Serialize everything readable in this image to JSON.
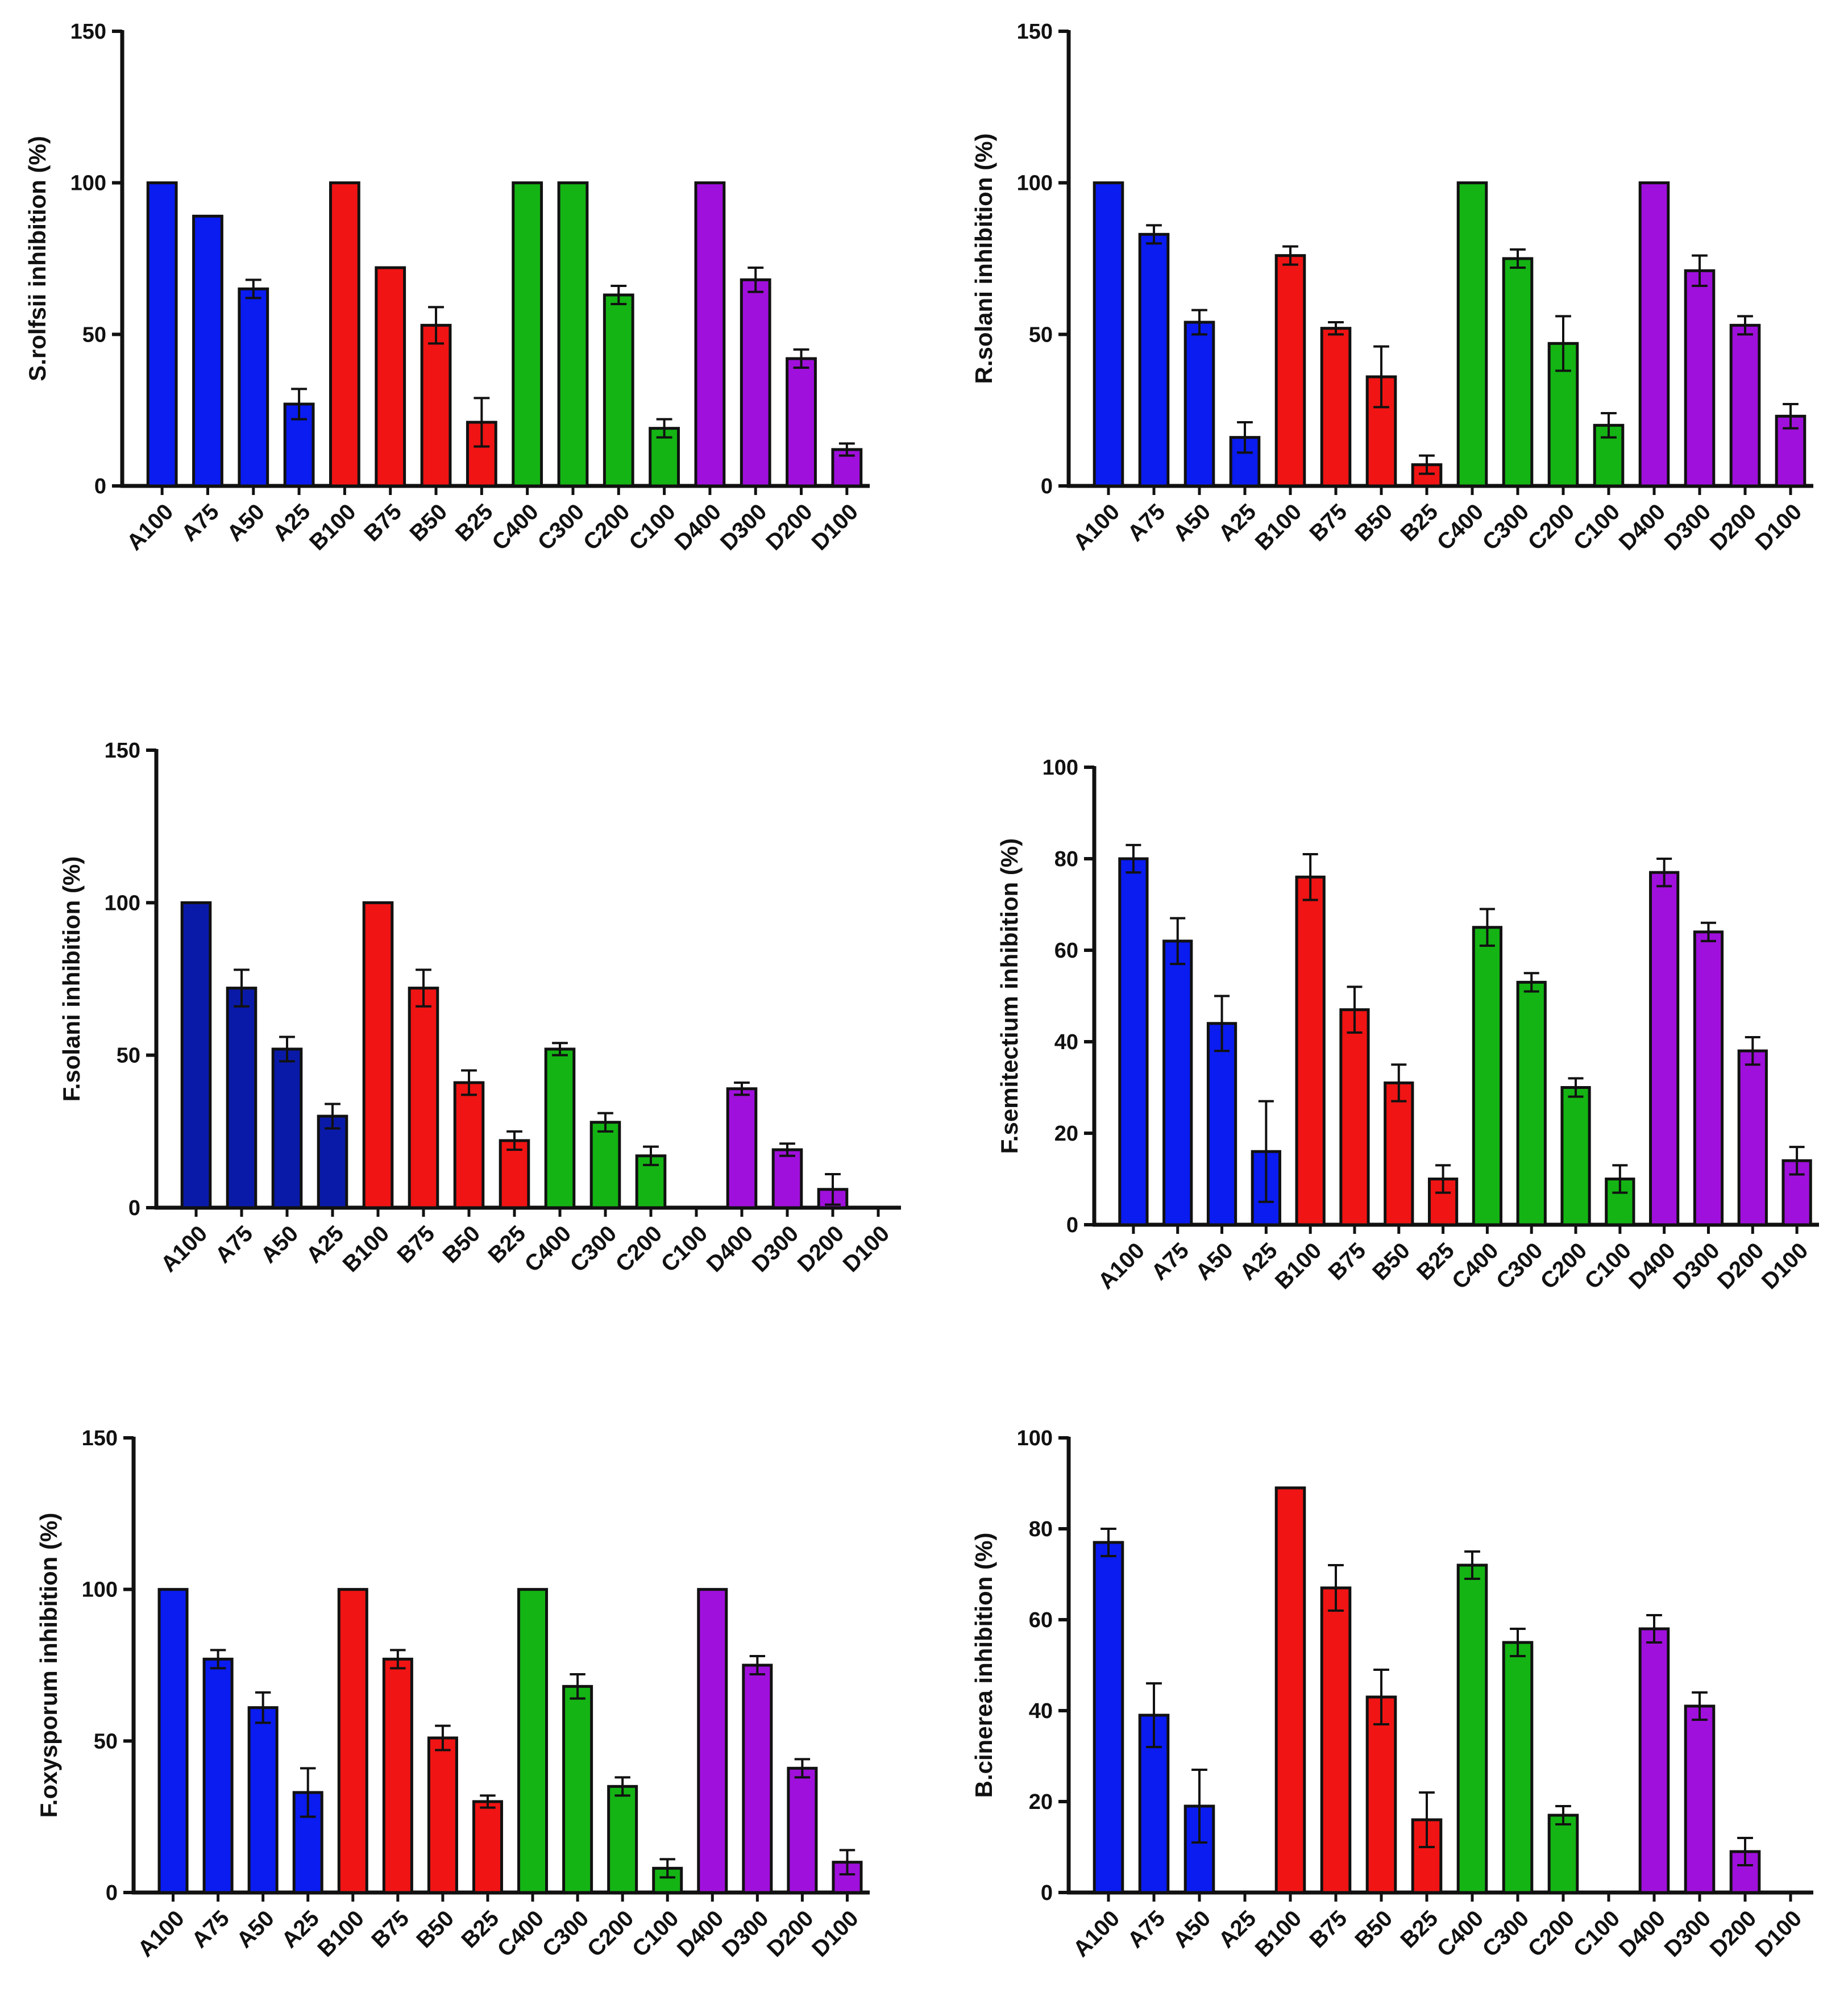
{
  "colors": {
    "A": "#0a1cf0",
    "B": "#f01414",
    "C": "#14b414",
    "D": "#a010dc",
    "A_dark": "#0a1aa8",
    "axis": "#111111"
  },
  "chart_data": [
    {
      "type": "bar",
      "position": "top-left",
      "ylabel": "S.rolfsii inhibition (%)",
      "ylim": [
        0,
        150
      ],
      "yticks": [
        0,
        50,
        100,
        150
      ],
      "grid": false,
      "categories": [
        "A100",
        "A75",
        "A50",
        "A25",
        "B100",
        "B75",
        "B50",
        "B25",
        "C400",
        "C300",
        "C200",
        "C100",
        "D400",
        "D300",
        "D200",
        "D100"
      ],
      "values": [
        100,
        89,
        65,
        27,
        100,
        72,
        53,
        21,
        100,
        100,
        63,
        19,
        100,
        68,
        42,
        12
      ],
      "errors": [
        0,
        0,
        3,
        5,
        0,
        0,
        6,
        8,
        0,
        0,
        3,
        3,
        0,
        4,
        3,
        2
      ],
      "groups": [
        "A",
        "A",
        "A",
        "A",
        "B",
        "B",
        "B",
        "B",
        "C",
        "C",
        "C",
        "C",
        "D",
        "D",
        "D",
        "D"
      ]
    },
    {
      "type": "bar",
      "position": "top-right",
      "ylabel": "R.solani inhibition (%)",
      "ylim": [
        0,
        150
      ],
      "yticks": [
        0,
        50,
        100,
        150
      ],
      "grid": false,
      "categories": [
        "A100",
        "A75",
        "A50",
        "A25",
        "B100",
        "B75",
        "B50",
        "B25",
        "C400",
        "C300",
        "C200",
        "C100",
        "D400",
        "D300",
        "D200",
        "D100"
      ],
      "values": [
        100,
        83,
        54,
        16,
        76,
        52,
        36,
        7,
        100,
        75,
        47,
        20,
        100,
        71,
        53,
        23
      ],
      "errors": [
        0,
        3,
        4,
        5,
        3,
        2,
        10,
        3,
        0,
        3,
        9,
        4,
        0,
        5,
        3,
        4
      ],
      "groups": [
        "A",
        "A",
        "A",
        "A",
        "B",
        "B",
        "B",
        "B",
        "C",
        "C",
        "C",
        "C",
        "D",
        "D",
        "D",
        "D"
      ]
    },
    {
      "type": "bar",
      "position": "middle-left",
      "ylabel": "F.solani inhibition (%)",
      "ylim": [
        0,
        150
      ],
      "yticks": [
        0,
        50,
        100,
        150
      ],
      "grid": false,
      "categories": [
        "A100",
        "A75",
        "A50",
        "A25",
        "B100",
        "B75",
        "B50",
        "B25",
        "C400",
        "C300",
        "C200",
        "C100",
        "D400",
        "D300",
        "D200",
        "D100"
      ],
      "values": [
        100,
        72,
        52,
        30,
        100,
        72,
        41,
        22,
        52,
        28,
        17,
        0,
        39,
        19,
        6,
        0
      ],
      "errors": [
        0,
        6,
        4,
        4,
        0,
        6,
        4,
        3,
        2,
        3,
        3,
        0,
        2,
        2,
        5,
        0
      ],
      "groups": [
        "A",
        "A",
        "A",
        "A",
        "B",
        "B",
        "B",
        "B",
        "C",
        "C",
        "C",
        "C",
        "D",
        "D",
        "D",
        "D"
      ],
      "first_group_dark": true
    },
    {
      "type": "bar",
      "position": "middle-right",
      "ylabel": "F.semitectium inhibition (%)",
      "ylim": [
        0,
        100
      ],
      "yticks": [
        0,
        20,
        40,
        60,
        80,
        100
      ],
      "grid": false,
      "categories": [
        "A100",
        "A75",
        "A50",
        "A25",
        "B100",
        "B75",
        "B50",
        "B25",
        "C400",
        "C300",
        "C200",
        "C100",
        "D400",
        "D300",
        "D200",
        "D100"
      ],
      "values": [
        80,
        62,
        44,
        16,
        76,
        47,
        31,
        10,
        65,
        53,
        30,
        10,
        77,
        64,
        38,
        14
      ],
      "errors": [
        3,
        5,
        6,
        11,
        5,
        5,
        4,
        3,
        4,
        2,
        2,
        3,
        3,
        2,
        3,
        3
      ],
      "groups": [
        "A",
        "A",
        "A",
        "A",
        "B",
        "B",
        "B",
        "B",
        "C",
        "C",
        "C",
        "C",
        "D",
        "D",
        "D",
        "D"
      ]
    },
    {
      "type": "bar",
      "position": "bottom-left",
      "ylabel": "F.oxysporum inhibition (%)",
      "ylim": [
        0,
        150
      ],
      "yticks": [
        0,
        50,
        100,
        150
      ],
      "grid": false,
      "categories": [
        "A100",
        "A75",
        "A50",
        "A25",
        "B100",
        "B75",
        "B50",
        "B25",
        "C400",
        "C300",
        "C200",
        "C100",
        "D400",
        "D300",
        "D200",
        "D100"
      ],
      "values": [
        100,
        77,
        61,
        33,
        100,
        77,
        51,
        30,
        100,
        68,
        35,
        8,
        100,
        75,
        41,
        10
      ],
      "errors": [
        0,
        3,
        5,
        8,
        0,
        3,
        4,
        2,
        0,
        4,
        3,
        3,
        0,
        3,
        3,
        4
      ],
      "groups": [
        "A",
        "A",
        "A",
        "A",
        "B",
        "B",
        "B",
        "B",
        "C",
        "C",
        "C",
        "C",
        "D",
        "D",
        "D",
        "D"
      ]
    },
    {
      "type": "bar",
      "position": "bottom-right",
      "ylabel": "B.cinerea inhibition (%)",
      "ylim": [
        0,
        100
      ],
      "yticks": [
        0,
        20,
        40,
        60,
        80,
        100
      ],
      "grid": false,
      "categories": [
        "A100",
        "A75",
        "A50",
        "A25",
        "B100",
        "B75",
        "B50",
        "B25",
        "C400",
        "C300",
        "C200",
        "C100",
        "D400",
        "D300",
        "D200",
        "D100"
      ],
      "values": [
        77,
        39,
        19,
        0,
        89,
        67,
        43,
        16,
        72,
        55,
        17,
        0,
        58,
        41,
        9,
        0
      ],
      "errors": [
        3,
        7,
        8,
        0,
        0,
        5,
        6,
        6,
        3,
        3,
        2,
        0,
        3,
        3,
        3,
        0
      ],
      "groups": [
        "A",
        "A",
        "A",
        "A",
        "B",
        "B",
        "B",
        "B",
        "C",
        "C",
        "C",
        "C",
        "D",
        "D",
        "D",
        "D"
      ]
    }
  ]
}
